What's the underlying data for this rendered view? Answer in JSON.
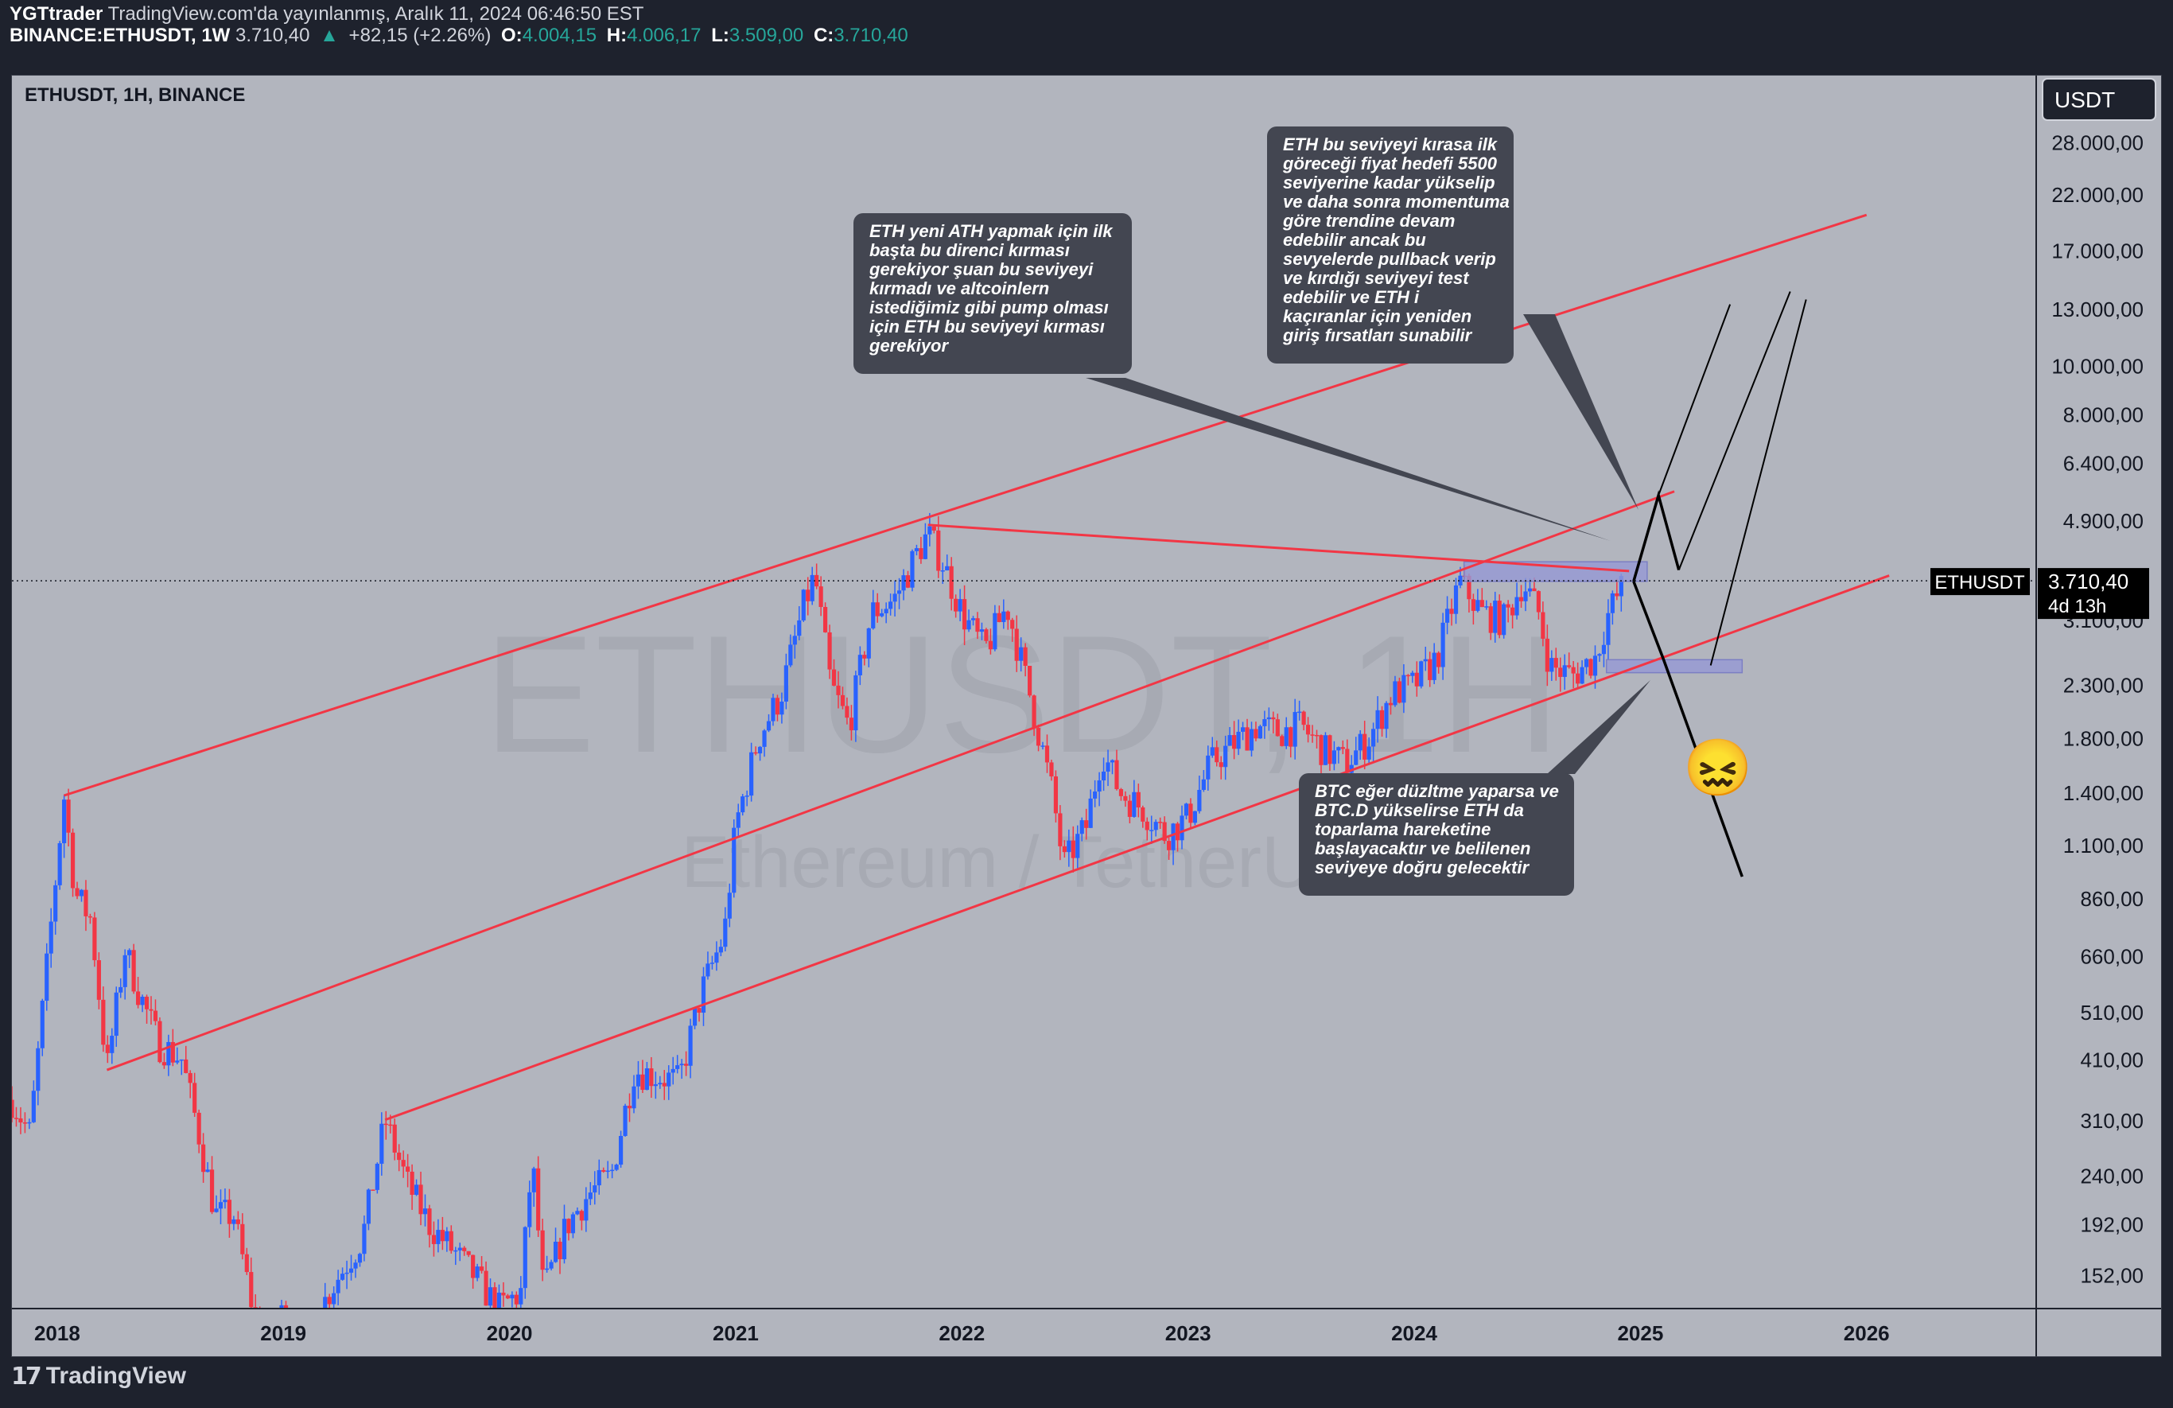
{
  "header": {
    "author": "YGTtrader",
    "published": "TradingView.com'da yayınlanmış, Aralık 11, 2024 06:46:50 EST",
    "symbol_line": "BINANCE:ETHUSDT, 1W",
    "last": "3.710,40",
    "change_arrow": "▲",
    "change": "+82,15 (+2.26%)",
    "o_label": "O:",
    "o_value": "4.004,15",
    "h_label": "H:",
    "h_value": "4.006,17",
    "l_label": "L:",
    "l_value": "3.509,00",
    "c_label": "C:",
    "c_value": "3.710,40"
  },
  "chart": {
    "legend": "ETHUSDT, 1H, BINANCE",
    "watermark_symbol": "ETHUSDT, 1H",
    "watermark_name": "Ethereum / TetherUS",
    "currency_button": "USDT",
    "price_tag_symbol": "ETHUSDT",
    "price_tag_value": "3.710,40",
    "price_tag_countdown": "4d 13h",
    "colors": {
      "background": "#b2b5be",
      "frame": "#1e222d",
      "up": "#2962ff",
      "down": "#f23645",
      "channel": "#f23645",
      "callout": "#434651",
      "zone": "#9598d4"
    }
  },
  "callouts": {
    "ath": "ETH yeni ATH yapmak için ilk başta bu direnci kırması gerekiyor şuan bu seviyeyi kırmadı ve altcoinlern istediğimiz gibi pump olması için ETH bu seviyeyi kırması gerekiyor",
    "target": "ETH bu seviyeyi kırasa ilk göreceği fiyat hedefi 5500 seviyerine kadar yükselip ve daha sonra momentuma göre trendine devam edebilir ancak bu sevyelerde pullback verip ve kırdığı seviyeyi test edebilir ve ETH i kaçıranlar için yeniden giriş fırsatları sunabilir",
    "btc": "BTC eğer düzltme yaparsa ve BTC.D yükselirse ETH da toparlama hareketine başlayacaktır ve belilenen seviyeye doğru gelecektir"
  },
  "emoji": "😖",
  "footer": {
    "logo": "TradingView"
  },
  "chart_data": {
    "type": "candlestick",
    "title": "ETHUSDT, 1H, BINANCE",
    "y_scale": "log",
    "ylim": [
      130,
      38000
    ],
    "xlim": [
      2017.8,
      2026.75
    ],
    "y_ticks": [
      {
        "value": 28000,
        "label": "28.000,00"
      },
      {
        "value": 22000,
        "label": "22.000,00"
      },
      {
        "value": 17000,
        "label": "17.000,00"
      },
      {
        "value": 13000,
        "label": "13.000,00"
      },
      {
        "value": 10000,
        "label": "10.000,00"
      },
      {
        "value": 8000,
        "label": "8.000,00"
      },
      {
        "value": 6400,
        "label": "6.400,00"
      },
      {
        "value": 4900,
        "label": "4.900,00"
      },
      {
        "value": 3100,
        "label": "3.100,00"
      },
      {
        "value": 2300,
        "label": "2.300,00"
      },
      {
        "value": 1800,
        "label": "1.800,00"
      },
      {
        "value": 1400,
        "label": "1.400,00"
      },
      {
        "value": 1100,
        "label": "1.100,00"
      },
      {
        "value": 860,
        "label": "860,00"
      },
      {
        "value": 660,
        "label": "660,00"
      },
      {
        "value": 510,
        "label": "510,00"
      },
      {
        "value": 410,
        "label": "410,00"
      },
      {
        "value": 310,
        "label": "310,00"
      },
      {
        "value": 240,
        "label": "240,00"
      },
      {
        "value": 192,
        "label": "192,00"
      },
      {
        "value": 152,
        "label": "152,00"
      }
    ],
    "x_ticks": [
      {
        "value": 2018,
        "label": "2018"
      },
      {
        "value": 2019,
        "label": "2019"
      },
      {
        "value": 2020,
        "label": "2020"
      },
      {
        "value": 2021,
        "label": "2021"
      },
      {
        "value": 2022,
        "label": "2022"
      },
      {
        "value": 2023,
        "label": "2023"
      },
      {
        "value": 2024,
        "label": "2024"
      },
      {
        "value": 2025,
        "label": "2025"
      },
      {
        "value": 2026,
        "label": "2026"
      }
    ],
    "price_path": [
      [
        2017.8,
        340
      ],
      [
        2017.88,
        290
      ],
      [
        2017.95,
        600
      ],
      [
        2018.03,
        1380
      ],
      [
        2018.08,
        880
      ],
      [
        2018.15,
        780
      ],
      [
        2018.22,
        390
      ],
      [
        2018.3,
        680
      ],
      [
        2018.36,
        560
      ],
      [
        2018.45,
        440
      ],
      [
        2018.55,
        410
      ],
      [
        2018.62,
        300
      ],
      [
        2018.7,
        200
      ],
      [
        2018.78,
        200
      ],
      [
        2018.85,
        140
      ],
      [
        2018.92,
        100
      ],
      [
        2019.0,
        130
      ],
      [
        2019.1,
        110
      ],
      [
        2019.2,
        140
      ],
      [
        2019.35,
        180
      ],
      [
        2019.45,
        310
      ],
      [
        2019.55,
        230
      ],
      [
        2019.65,
        190
      ],
      [
        2019.75,
        170
      ],
      [
        2019.85,
        150
      ],
      [
        2019.95,
        130
      ],
      [
        2020.05,
        140
      ],
      [
        2020.1,
        260
      ],
      [
        2020.15,
        140
      ],
      [
        2020.25,
        190
      ],
      [
        2020.35,
        220
      ],
      [
        2020.45,
        240
      ],
      [
        2020.55,
        390
      ],
      [
        2020.65,
        380
      ],
      [
        2020.75,
        370
      ],
      [
        2020.85,
        560
      ],
      [
        2020.95,
        730
      ],
      [
        2021.0,
        1200
      ],
      [
        2021.1,
        1800
      ],
      [
        2021.2,
        2200
      ],
      [
        2021.3,
        3300
      ],
      [
        2021.35,
        3800
      ],
      [
        2021.42,
        2300
      ],
      [
        2021.5,
        1900
      ],
      [
        2021.6,
        3200
      ],
      [
        2021.7,
        3400
      ],
      [
        2021.8,
        4200
      ],
      [
        2021.85,
        4600
      ],
      [
        2021.92,
        4000
      ],
      [
        2022.0,
        3200
      ],
      [
        2022.1,
        2700
      ],
      [
        2022.2,
        3300
      ],
      [
        2022.3,
        2200
      ],
      [
        2022.4,
        1400
      ],
      [
        2022.45,
        1000
      ],
      [
        2022.55,
        1200
      ],
      [
        2022.62,
        1700
      ],
      [
        2022.7,
        1400
      ],
      [
        2022.8,
        1300
      ],
      [
        2022.9,
        1150
      ],
      [
        2023.0,
        1250
      ],
      [
        2023.1,
        1600
      ],
      [
        2023.2,
        1750
      ],
      [
        2023.3,
        1900
      ],
      [
        2023.4,
        1850
      ],
      [
        2023.5,
        1900
      ],
      [
        2023.6,
        1700
      ],
      [
        2023.7,
        1600
      ],
      [
        2023.8,
        1800
      ],
      [
        2023.9,
        2200
      ],
      [
        2024.0,
        2300
      ],
      [
        2024.1,
        2600
      ],
      [
        2024.2,
        3700
      ],
      [
        2024.3,
        3200
      ],
      [
        2024.4,
        3100
      ],
      [
        2024.48,
        3700
      ],
      [
        2024.55,
        3200
      ],
      [
        2024.6,
        2500
      ],
      [
        2024.7,
        2400
      ],
      [
        2024.8,
        2600
      ],
      [
        2024.86,
        3200
      ],
      [
        2024.93,
        3700
      ]
    ],
    "last_price": 3710.4,
    "annotations": {
      "channel_upper_parallel": [
        [
          2018.03,
          1380
        ],
        [
          2026.0,
          20000
        ]
      ],
      "channel_mid": [
        [
          2018.22,
          390
        ],
        [
          2025.15,
          5600
        ]
      ],
      "channel_lower": [
        [
          2019.45,
          310
        ],
        [
          2026.1,
          3800
        ]
      ],
      "ath_resistance": [
        [
          2021.85,
          4800
        ],
        [
          2024.95,
          3880
        ]
      ],
      "resistance_zone": [
        [
          2024.22,
          3700
        ],
        [
          2025.03,
          4050
        ]
      ],
      "support_zone": [
        [
          2024.85,
          2430
        ],
        [
          2025.45,
          2580
        ]
      ],
      "bull_path": [
        [
          2024.97,
          3700
        ],
        [
          2025.08,
          5500
        ],
        [
          2025.17,
          3900
        ]
      ],
      "bear_path": [
        [
          2024.97,
          3700
        ],
        [
          2025.1,
          2600
        ],
        [
          2025.45,
          950
        ]
      ]
    }
  }
}
